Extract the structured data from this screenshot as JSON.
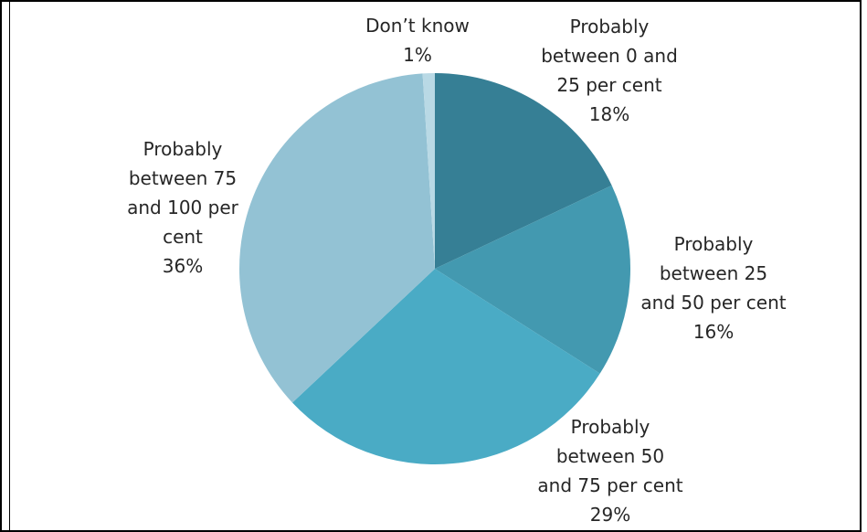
{
  "chart_data": {
    "type": "pie",
    "title": "",
    "start_angle_deg": 0,
    "direction": "clockwise",
    "slices": [
      {
        "label_lines": [
          "Probably",
          "between 0 and",
          "25 per cent"
        ],
        "value": 18,
        "value_label": "18%",
        "color": "#367f95"
      },
      {
        "label_lines": [
          "Probably",
          "between 25",
          "and 50 per cent"
        ],
        "value": 16,
        "value_label": "16%",
        "color": "#4399b0"
      },
      {
        "label_lines": [
          "Probably",
          "between 50",
          "and 75 per cent"
        ],
        "value": 29,
        "value_label": "29%",
        "color": "#4aabc5"
      },
      {
        "label_lines": [
          "Probably",
          "between 75",
          "and 100 per",
          "cent"
        ],
        "value": 36,
        "value_label": "36%",
        "color": "#93c2d4"
      },
      {
        "label_lines": [
          "Don’t know"
        ],
        "value": 1,
        "value_label": "1%",
        "color": "#b9d9e5"
      }
    ]
  }
}
